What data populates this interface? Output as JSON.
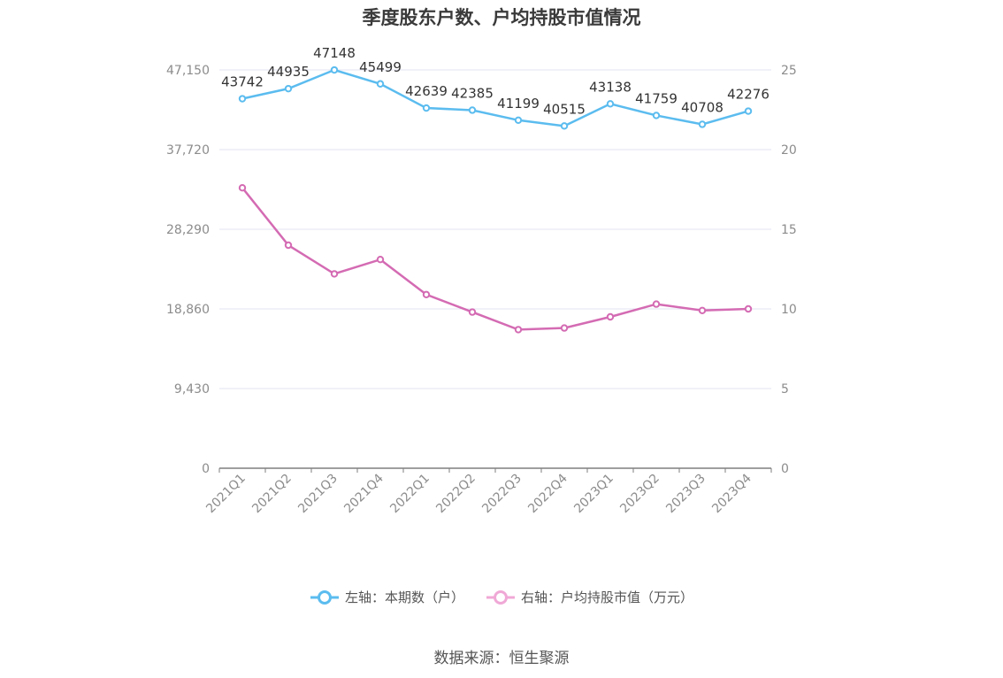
{
  "chart_data": {
    "type": "line",
    "title": "季度股东户数、户均持股市值情况",
    "categories": [
      "2021Q1",
      "2021Q2",
      "2021Q3",
      "2021Q4",
      "2022Q1",
      "2022Q2",
      "2022Q3",
      "2022Q4",
      "2023Q1",
      "2023Q2",
      "2023Q3",
      "2023Q4"
    ],
    "left_axis": {
      "ylim": [
        0,
        47150
      ],
      "ticks": [
        "0",
        "9,430",
        "18,860",
        "28,290",
        "37,720",
        "47,150"
      ]
    },
    "right_axis": {
      "ylim": [
        0,
        25
      ],
      "ticks": [
        "0",
        "5",
        "10",
        "15",
        "20",
        "25"
      ]
    },
    "series": [
      {
        "name": "左轴：本期数（户）",
        "axis": "left",
        "color": "#5bbcef",
        "values": [
          43742,
          44935,
          47148,
          45499,
          42639,
          42385,
          41199,
          40515,
          43138,
          41759,
          40708,
          42276
        ],
        "labels": [
          "43742",
          "44935",
          "47148",
          "45499",
          "42639",
          "42385",
          "41199",
          "40515",
          "43138",
          "41759",
          "40708",
          "42276"
        ]
      },
      {
        "name": "右轴：户均持股市值（万元）",
        "axis": "right",
        "color": "#d46bb3",
        "values": [
          17.6,
          14.0,
          12.2,
          13.1,
          10.9,
          9.8,
          8.7,
          8.8,
          9.5,
          10.3,
          9.9,
          10.0
        ]
      }
    ],
    "grid": true,
    "legend_position": "bottom-center"
  },
  "legend": {
    "left_label": "左轴：本期数（户）",
    "right_label": "右轴：户均持股市值（万元）"
  },
  "source": "数据来源：恒生聚源"
}
